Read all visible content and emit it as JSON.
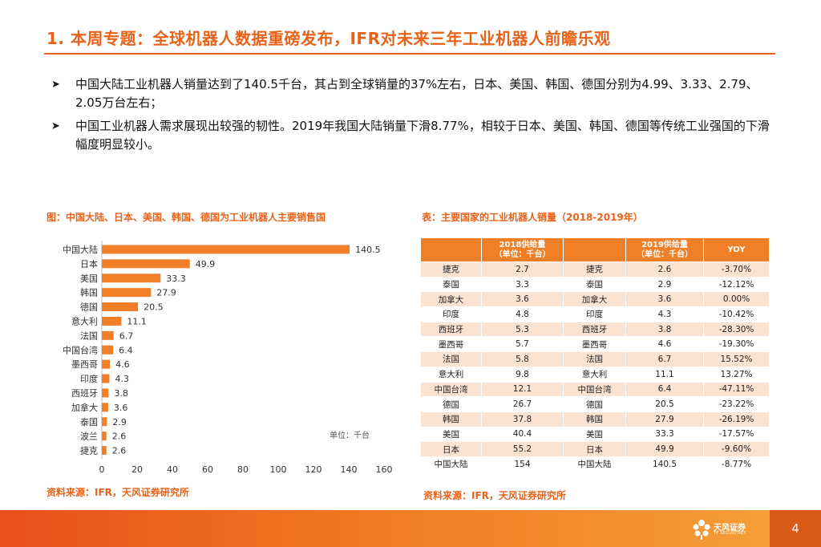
{
  "title": "1. 本周专题：全球机器人数据重磅发布，IFR对未来三年工业机器人前瞻乐观",
  "bullets": [
    "中国大陆工业机器人销量达到了140.5千台，其占到全球销量的37%左右，日本、美国、韩国、德国分别为4.99、3.33、2.79、2.05万台左右；",
    "中国工业机器人需求展现出较强的韧性。2019年我国大陆销量下滑8.77%，相较于日本、美国、韩国、德国等传统工业强国的下滑幅度明显较小。"
  ],
  "left_caption": "图：中国大陆、日本、美国、韩国、德国为工业机器人主要销售国",
  "right_caption": "表：主要国家的工业机器人销量（2018-2019年）",
  "chart_data": {
    "type": "bar",
    "orientation": "horizontal",
    "title": "",
    "categories": [
      "中国大陆",
      "日本",
      "美国",
      "韩国",
      "德国",
      "意大利",
      "法国",
      "中国台湾",
      "墨西哥",
      "印度",
      "西班牙",
      "加拿大",
      "泰国",
      "波兰",
      "捷克"
    ],
    "values": [
      140.5,
      49.9,
      33.3,
      27.9,
      20.5,
      11.1,
      6.7,
      6.4,
      4.6,
      4.3,
      3.8,
      3.6,
      2.9,
      2.6,
      2.6
    ],
    "x_ticks": [
      0,
      20,
      40,
      60,
      80,
      100,
      120,
      140,
      160
    ],
    "xlim": [
      0,
      160
    ],
    "unit_label": "单位：千台",
    "bar_color": "#f07f28"
  },
  "table": {
    "headers": [
      "",
      "2018供给量\n（单位：千台）",
      "",
      "2019供给量\n（单位：千台）",
      "YOY"
    ],
    "rows": [
      [
        "捷克",
        "2.7",
        "捷克",
        "2.6",
        "-3.70%"
      ],
      [
        "泰国",
        "3.3",
        "泰国",
        "2.9",
        "-12.12%"
      ],
      [
        "加拿大",
        "3.6",
        "加拿大",
        "3.6",
        "0.00%"
      ],
      [
        "印度",
        "4.8",
        "印度",
        "4.3",
        "-10.42%"
      ],
      [
        "西班牙",
        "5.3",
        "西班牙",
        "3.8",
        "-28.30%"
      ],
      [
        "墨西哥",
        "5.7",
        "墨西哥",
        "4.6",
        "-19.30%"
      ],
      [
        "法国",
        "5.8",
        "法国",
        "6.7",
        "15.52%"
      ],
      [
        "意大利",
        "9.8",
        "意大利",
        "11.1",
        "13.27%"
      ],
      [
        "中国台湾",
        "12.1",
        "中国台湾",
        "6.4",
        "-47.11%"
      ],
      [
        "德国",
        "26.7",
        "德国",
        "20.5",
        "-23.22%"
      ],
      [
        "韩国",
        "37.8",
        "韩国",
        "27.9",
        "-26.19%"
      ],
      [
        "美国",
        "40.4",
        "美国",
        "33.3",
        "-17.57%"
      ],
      [
        "日本",
        "55.2",
        "日本",
        "49.9",
        "-9.60%"
      ],
      [
        "中国大陆",
        "154",
        "中国大陆",
        "140.5",
        "-8.77%"
      ]
    ]
  },
  "source_left": "资料来源：IFR，天风证券研究所",
  "source_right": "资料来源：IFR，天风证券研究所",
  "footer": {
    "logo_name": "天风证券",
    "logo_sub": "TF SECURITIES",
    "page_number": "4"
  },
  "colors": {
    "accent": "#e8621a",
    "bar": "#f07f28",
    "table_stripe": "#fbe3d2"
  }
}
